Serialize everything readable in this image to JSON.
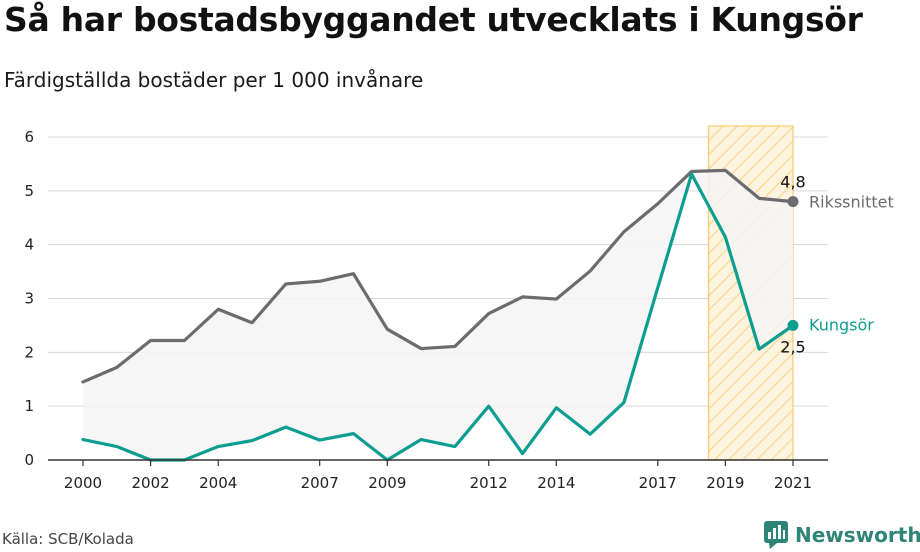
{
  "header": {
    "title": "Så har bostadsbyggandet utvecklats i Kungsör",
    "subtitle": "Färdigställda bostäder per 1 000 invånare"
  },
  "footer": {
    "source": "Källa: SCB/Kolada",
    "brand": "Newsworthy"
  },
  "colors": {
    "kungsor": "#0e9e91",
    "riket": "#6b6b70",
    "highlight": "#f7c65a",
    "fill": "#f4f4f4"
  },
  "chart_data": {
    "type": "line",
    "x": [
      2000,
      2001,
      2002,
      2003,
      2004,
      2005,
      2006,
      2007,
      2008,
      2009,
      2010,
      2011,
      2012,
      2013,
      2014,
      2015,
      2016,
      2017,
      2018,
      2019,
      2020,
      2021
    ],
    "x_tick_labels": [
      "2000",
      "2002",
      "2004",
      "2007",
      "2009",
      "2012",
      "2014",
      "2017",
      "2019",
      "2021"
    ],
    "x_ticks": [
      2000,
      2002,
      2004,
      2007,
      2009,
      2012,
      2014,
      2017,
      2019,
      2021
    ],
    "y_ticks": [
      0,
      1,
      2,
      3,
      4,
      5,
      6
    ],
    "ylim": [
      0,
      6
    ],
    "xlim": [
      2000,
      2021
    ],
    "grid": true,
    "highlight_range": [
      2018.5,
      2021
    ],
    "series": [
      {
        "name": "Rikssnittet",
        "color": "#6b6b70",
        "values": [
          1.45,
          1.72,
          2.22,
          2.22,
          2.8,
          2.55,
          3.27,
          3.32,
          3.46,
          2.43,
          2.07,
          2.11,
          2.72,
          3.03,
          2.99,
          3.51,
          4.24,
          4.76,
          5.36,
          5.38,
          4.86,
          4.8
        ],
        "end_value_label": "4,8"
      },
      {
        "name": "Kungsör",
        "color": "#0e9e91",
        "values": [
          0.38,
          0.25,
          0.0,
          0.0,
          0.25,
          0.36,
          0.61,
          0.37,
          0.49,
          0.0,
          0.38,
          0.25,
          1.0,
          0.12,
          0.97,
          0.48,
          1.07,
          3.2,
          5.31,
          4.14,
          2.06,
          2.5
        ],
        "end_value_label": "2,5"
      }
    ]
  }
}
